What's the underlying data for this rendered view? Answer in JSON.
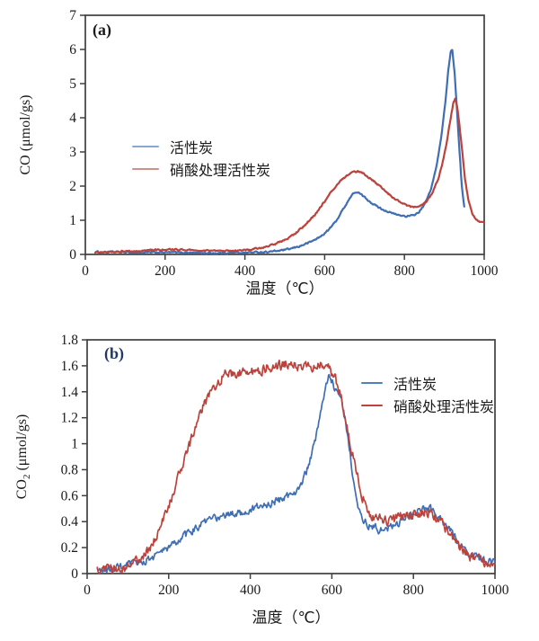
{
  "figure": {
    "background": "#ffffff",
    "frame_color": "#3f3f3f",
    "text_color": "#1a1a1a"
  },
  "chart_data": [
    {
      "type": "line",
      "panel_label": "(a)",
      "xlabel": "温度（℃）",
      "ylabel": {
        "main": "CO",
        "sub": "",
        "unit": " (μmol/gs)"
      },
      "xlim": [
        0,
        1000
      ],
      "ylim": [
        0,
        7
      ],
      "x_ticks": [
        0,
        200,
        400,
        600,
        800,
        1000
      ],
      "x_tick_labels": [
        "0",
        "200",
        "400",
        "600",
        "800",
        "1000"
      ],
      "y_ticks": [
        0,
        1,
        2,
        3,
        4,
        5,
        6,
        7
      ],
      "y_tick_labels": [
        "0",
        "1",
        "2",
        "3",
        "4",
        "5",
        "6",
        "7"
      ],
      "grid": false,
      "legend_position": "upper-left-inside",
      "legend": [
        {
          "label": "活性炭",
          "color": "#8aa8cf"
        },
        {
          "label": "硝酸处理活性炭",
          "color": "#cf908c"
        }
      ],
      "series": [
        {
          "name": "活性炭",
          "color": "#3f6eb4",
          "noise": 0.02,
          "points": [
            [
              25,
              0.07
            ],
            [
              60,
              0.07
            ],
            [
              100,
              0.06
            ],
            [
              140,
              0.05
            ],
            [
              180,
              0.06
            ],
            [
              220,
              0.06
            ],
            [
              260,
              0.05
            ],
            [
              300,
              0.04
            ],
            [
              340,
              0.04
            ],
            [
              380,
              0.05
            ],
            [
              420,
              0.06
            ],
            [
              450,
              0.07
            ],
            [
              480,
              0.1
            ],
            [
              510,
              0.15
            ],
            [
              540,
              0.25
            ],
            [
              565,
              0.37
            ],
            [
              590,
              0.52
            ],
            [
              610,
              0.72
            ],
            [
              630,
              1.0
            ],
            [
              650,
              1.4
            ],
            [
              665,
              1.68
            ],
            [
              675,
              1.82
            ],
            [
              685,
              1.8
            ],
            [
              695,
              1.72
            ],
            [
              710,
              1.58
            ],
            [
              725,
              1.45
            ],
            [
              745,
              1.32
            ],
            [
              765,
              1.22
            ],
            [
              785,
              1.15
            ],
            [
              805,
              1.12
            ],
            [
              820,
              1.13
            ],
            [
              835,
              1.22
            ],
            [
              850,
              1.45
            ],
            [
              865,
              1.85
            ],
            [
              880,
              2.55
            ],
            [
              892,
              3.4
            ],
            [
              902,
              4.4
            ],
            [
              910,
              5.4
            ],
            [
              916,
              5.95
            ],
            [
              920,
              6.0
            ],
            [
              926,
              5.3
            ],
            [
              932,
              4.2
            ],
            [
              938,
              3.0
            ],
            [
              944,
              2.0
            ],
            [
              950,
              1.4
            ]
          ]
        },
        {
          "name": "硝酸处理活性炭",
          "color": "#bc423c",
          "noise": 0.02,
          "points": [
            [
              25,
              0.06
            ],
            [
              60,
              0.07
            ],
            [
              100,
              0.09
            ],
            [
              140,
              0.11
            ],
            [
              180,
              0.13
            ],
            [
              210,
              0.14
            ],
            [
              240,
              0.14
            ],
            [
              270,
              0.12
            ],
            [
              300,
              0.11
            ],
            [
              340,
              0.1
            ],
            [
              380,
              0.11
            ],
            [
              410,
              0.14
            ],
            [
              440,
              0.19
            ],
            [
              470,
              0.28
            ],
            [
              500,
              0.42
            ],
            [
              525,
              0.6
            ],
            [
              550,
              0.85
            ],
            [
              575,
              1.15
            ],
            [
              600,
              1.55
            ],
            [
              620,
              1.88
            ],
            [
              640,
              2.15
            ],
            [
              655,
              2.3
            ],
            [
              670,
              2.4
            ],
            [
              685,
              2.42
            ],
            [
              700,
              2.35
            ],
            [
              715,
              2.22
            ],
            [
              730,
              2.08
            ],
            [
              750,
              1.88
            ],
            [
              770,
              1.68
            ],
            [
              790,
              1.52
            ],
            [
              810,
              1.42
            ],
            [
              825,
              1.38
            ],
            [
              840,
              1.42
            ],
            [
              855,
              1.55
            ],
            [
              870,
              1.8
            ],
            [
              885,
              2.2
            ],
            [
              898,
              2.8
            ],
            [
              908,
              3.4
            ],
            [
              916,
              4.0
            ],
            [
              922,
              4.4
            ],
            [
              927,
              4.55
            ],
            [
              932,
              4.35
            ],
            [
              938,
              3.8
            ],
            [
              945,
              3.0
            ],
            [
              952,
              2.2
            ],
            [
              960,
              1.6
            ],
            [
              970,
              1.2
            ],
            [
              980,
              1.0
            ],
            [
              990,
              0.95
            ],
            [
              1000,
              0.93
            ]
          ]
        }
      ]
    },
    {
      "type": "line",
      "panel_label": "(b)",
      "xlabel": "温度（℃）",
      "ylabel": {
        "main": "CO",
        "sub": "2",
        "unit": " (μmol/gs)"
      },
      "xlim": [
        0,
        1000
      ],
      "ylim": [
        0,
        1.8
      ],
      "x_ticks": [
        0,
        200,
        400,
        600,
        800,
        1000
      ],
      "x_tick_labels": [
        "0",
        "200",
        "400",
        "600",
        "800",
        "1000"
      ],
      "y_ticks": [
        0,
        0.2,
        0.4,
        0.6,
        0.8,
        1.0,
        1.2,
        1.4,
        1.6,
        1.8
      ],
      "y_tick_labels": [
        "0",
        "0.2",
        "0.4",
        "0.6",
        "0.8",
        "1",
        "1.2",
        "1.4",
        "1.6",
        "1.8"
      ],
      "grid": false,
      "legend_position": "upper-right-inside",
      "legend": [
        {
          "label": "活性炭",
          "color": "#4f81bd"
        },
        {
          "label": "硝酸处理活性炭",
          "color": "#bc423c"
        }
      ],
      "series": [
        {
          "name": "活性炭",
          "color": "#3f6eb4",
          "noise": 0.027,
          "points": [
            [
              25,
              0.02
            ],
            [
              60,
              0.03
            ],
            [
              90,
              0.05
            ],
            [
              120,
              0.08
            ],
            [
              150,
              0.11
            ],
            [
              180,
              0.16
            ],
            [
              210,
              0.22
            ],
            [
              240,
              0.29
            ],
            [
              270,
              0.36
            ],
            [
              300,
              0.41
            ],
            [
              330,
              0.44
            ],
            [
              360,
              0.46
            ],
            [
              390,
              0.48
            ],
            [
              420,
              0.51
            ],
            [
              450,
              0.54
            ],
            [
              475,
              0.57
            ],
            [
              500,
              0.61
            ],
            [
              515,
              0.65
            ],
            [
              530,
              0.72
            ],
            [
              545,
              0.85
            ],
            [
              558,
              1.0
            ],
            [
              570,
              1.18
            ],
            [
              580,
              1.35
            ],
            [
              590,
              1.5
            ],
            [
              597,
              1.53
            ],
            [
              605,
              1.45
            ],
            [
              612,
              1.42
            ],
            [
              620,
              1.38
            ],
            [
              628,
              1.28
            ],
            [
              636,
              1.12
            ],
            [
              645,
              0.92
            ],
            [
              654,
              0.7
            ],
            [
              662,
              0.52
            ],
            [
              670,
              0.44
            ],
            [
              680,
              0.4
            ],
            [
              692,
              0.37
            ],
            [
              705,
              0.35
            ],
            [
              720,
              0.33
            ],
            [
              735,
              0.34
            ],
            [
              750,
              0.37
            ],
            [
              765,
              0.4
            ],
            [
              780,
              0.43
            ],
            [
              795,
              0.46
            ],
            [
              810,
              0.48
            ],
            [
              825,
              0.5
            ],
            [
              838,
              0.5
            ],
            [
              850,
              0.47
            ],
            [
              862,
              0.43
            ],
            [
              875,
              0.38
            ],
            [
              890,
              0.33
            ],
            [
              905,
              0.27
            ],
            [
              920,
              0.21
            ],
            [
              935,
              0.17
            ],
            [
              950,
              0.13
            ],
            [
              965,
              0.11
            ],
            [
              980,
              0.09
            ],
            [
              1000,
              0.08
            ]
          ]
        },
        {
          "name": "硝酸处理活性炭",
          "color": "#bc423c",
          "noise": 0.034,
          "points": [
            [
              25,
              0.02
            ],
            [
              60,
              0.03
            ],
            [
              90,
              0.05
            ],
            [
              110,
              0.07
            ],
            [
              130,
              0.1
            ],
            [
              145,
              0.15
            ],
            [
              160,
              0.22
            ],
            [
              175,
              0.32
            ],
            [
              190,
              0.44
            ],
            [
              205,
              0.57
            ],
            [
              220,
              0.7
            ],
            [
              235,
              0.84
            ],
            [
              250,
              0.98
            ],
            [
              265,
              1.12
            ],
            [
              280,
              1.25
            ],
            [
              295,
              1.35
            ],
            [
              310,
              1.43
            ],
            [
              325,
              1.49
            ],
            [
              340,
              1.53
            ],
            [
              360,
              1.55
            ],
            [
              380,
              1.54
            ],
            [
              400,
              1.55
            ],
            [
              425,
              1.57
            ],
            [
              450,
              1.59
            ],
            [
              475,
              1.6
            ],
            [
              500,
              1.62
            ],
            [
              520,
              1.6
            ],
            [
              540,
              1.58
            ],
            [
              560,
              1.6
            ],
            [
              580,
              1.61
            ],
            [
              595,
              1.57
            ],
            [
              605,
              1.52
            ],
            [
              615,
              1.44
            ],
            [
              625,
              1.33
            ],
            [
              635,
              1.18
            ],
            [
              645,
              1.02
            ],
            [
              655,
              0.86
            ],
            [
              665,
              0.72
            ],
            [
              675,
              0.6
            ],
            [
              685,
              0.52
            ],
            [
              695,
              0.46
            ],
            [
              710,
              0.43
            ],
            [
              725,
              0.41
            ],
            [
              740,
              0.41
            ],
            [
              755,
              0.42
            ],
            [
              770,
              0.44
            ],
            [
              785,
              0.45
            ],
            [
              800,
              0.46
            ],
            [
              815,
              0.47
            ],
            [
              828,
              0.48
            ],
            [
              840,
              0.47
            ],
            [
              852,
              0.44
            ],
            [
              865,
              0.4
            ],
            [
              878,
              0.35
            ],
            [
              892,
              0.29
            ],
            [
              906,
              0.24
            ],
            [
              920,
              0.19
            ],
            [
              935,
              0.14
            ],
            [
              950,
              0.11
            ],
            [
              965,
              0.09
            ],
            [
              980,
              0.08
            ],
            [
              1000,
              0.07
            ]
          ]
        }
      ]
    }
  ]
}
